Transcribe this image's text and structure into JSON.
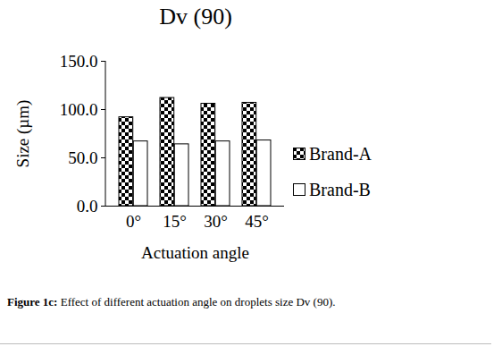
{
  "chart_data": {
    "type": "bar",
    "title": "Dv (90)",
    "x_label": "Actuation angle",
    "y_label": "Size (µm)",
    "categories": [
      "0°",
      "15°",
      "30°",
      "45°"
    ],
    "series": [
      {
        "name": "Brand-A",
        "color": "#000000",
        "values": [
          92,
          112,
          106,
          107
        ]
      },
      {
        "name": "Brand-B",
        "color": "#ffffff",
        "values": [
          67,
          64,
          67,
          68
        ]
      }
    ],
    "ylim": [
      0,
      150
    ],
    "yticks": [
      {
        "value": 0,
        "label": "0.0"
      },
      {
        "value": 50,
        "label": "50.0"
      },
      {
        "value": 100,
        "label": "100.0"
      },
      {
        "value": 150,
        "label": "150.0"
      }
    ],
    "grid": false,
    "legend": "right",
    "caption_label": "Figure 1c:",
    "caption": "Effect of different actuation angle on droplets size Dv (90)."
  }
}
